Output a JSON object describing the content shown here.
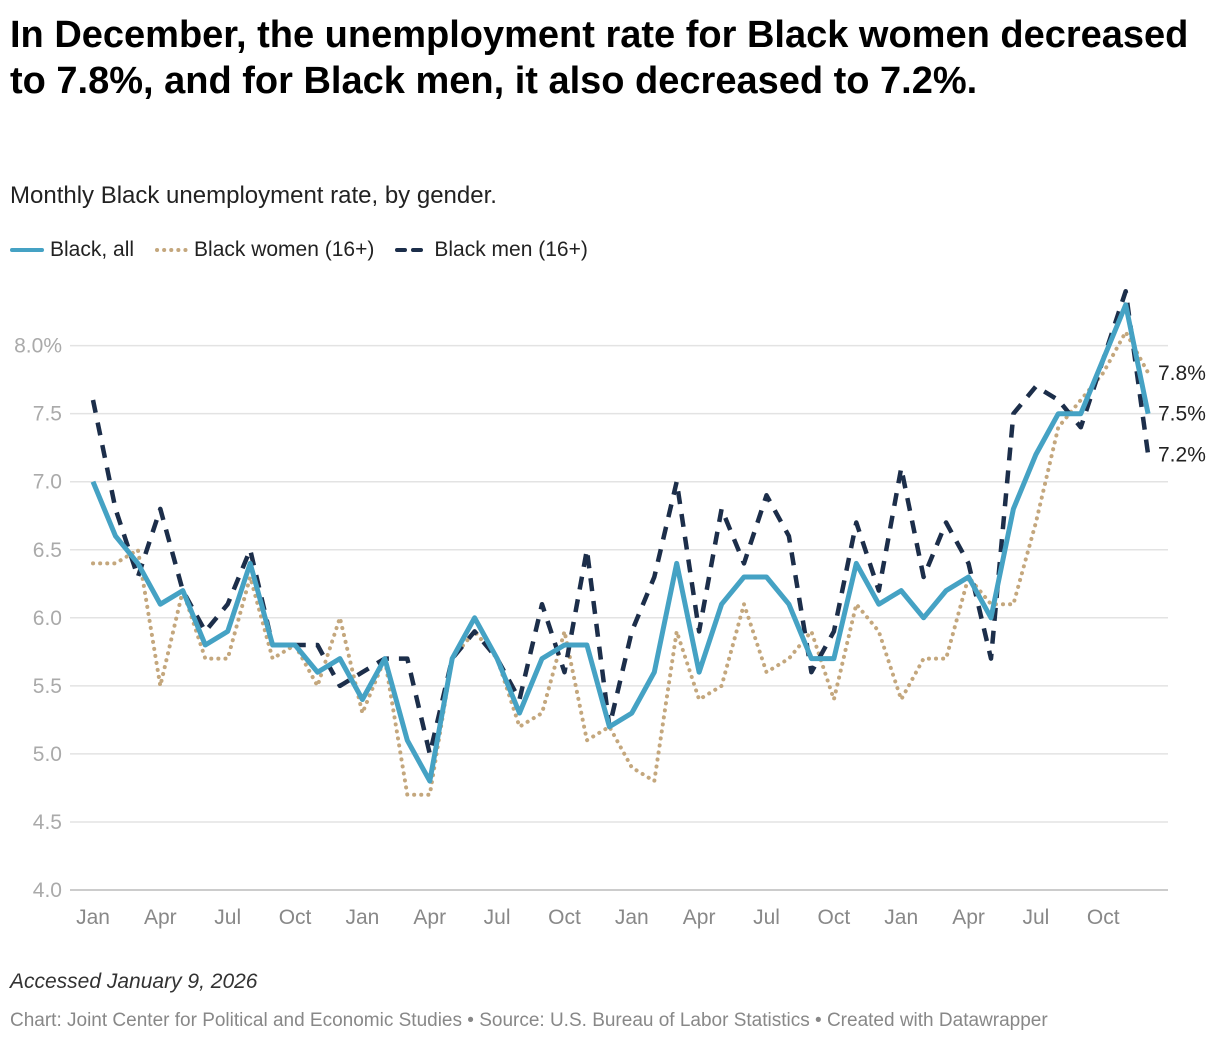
{
  "title": "In December, the unemployment rate for Black women decreased to 7.8%, and for Black men, it also decreased to 7.2%.",
  "subtitle": "Monthly Black unemployment rate, by gender.",
  "notes": "Accessed January 9, 2026",
  "footer": "Chart: Joint Center for Political and Economic Studies • Source: U.S. Bureau of Labor Statistics • Created with Datawrapper",
  "legend": [
    {
      "label": "Black, all",
      "color": "#45a2c4",
      "style": "solid"
    },
    {
      "label": "Black women (16+)",
      "color": "#c4a77d",
      "style": "dotted"
    },
    {
      "label": "Black men (16+)",
      "color": "#1c2e4a",
      "style": "dashed"
    }
  ],
  "chart_data": {
    "type": "line",
    "title": "In December, the unemployment rate for Black women decreased to 7.8%, and for Black men, it also decreased to 7.2%.",
    "subtitle": "Monthly Black unemployment rate, by gender.",
    "xlabel": "",
    "ylabel": "",
    "ylim": [
      4.0,
      8.4
    ],
    "yticks": [
      "4.0",
      "4.5",
      "5.0",
      "5.5",
      "6.0",
      "6.5",
      "7.0",
      "7.5",
      "8.0%"
    ],
    "ytick_values": [
      4.0,
      4.5,
      5.0,
      5.5,
      6.0,
      6.5,
      7.0,
      7.5,
      8.0
    ],
    "xticks": [
      {
        "index": 0,
        "label": "Jan"
      },
      {
        "index": 3,
        "label": "Apr"
      },
      {
        "index": 6,
        "label": "Jul"
      },
      {
        "index": 9,
        "label": "Oct"
      },
      {
        "index": 12,
        "label": "Jan"
      },
      {
        "index": 15,
        "label": "Apr"
      },
      {
        "index": 18,
        "label": "Jul"
      },
      {
        "index": 21,
        "label": "Oct"
      },
      {
        "index": 24,
        "label": "Jan"
      },
      {
        "index": 27,
        "label": "Apr"
      },
      {
        "index": 30,
        "label": "Jul"
      },
      {
        "index": 33,
        "label": "Oct"
      },
      {
        "index": 36,
        "label": "Jan"
      },
      {
        "index": 39,
        "label": "Apr"
      },
      {
        "index": 42,
        "label": "Jul"
      },
      {
        "index": 45,
        "label": "Oct"
      }
    ],
    "series": [
      {
        "name": "Black, all",
        "color": "#45a2c4",
        "style": "solid",
        "end_label": "7.5%",
        "values": [
          7.0,
          6.6,
          6.4,
          6.1,
          6.2,
          5.8,
          5.9,
          6.4,
          5.8,
          5.8,
          5.6,
          5.7,
          5.4,
          5.7,
          5.1,
          4.8,
          5.7,
          6.0,
          5.7,
          5.3,
          5.7,
          5.8,
          5.8,
          5.2,
          5.3,
          5.6,
          6.4,
          5.6,
          6.1,
          6.3,
          6.3,
          6.1,
          5.7,
          5.7,
          6.4,
          6.1,
          6.2,
          6.0,
          6.2,
          6.3,
          6.0,
          6.8,
          7.2,
          7.5,
          7.5,
          7.9,
          8.3,
          7.5
        ]
      },
      {
        "name": "Black women (16+)",
        "color": "#c4a77d",
        "style": "dotted",
        "end_label": "7.8%",
        "values": [
          6.4,
          6.4,
          6.5,
          5.5,
          6.2,
          5.7,
          5.7,
          6.3,
          5.7,
          5.8,
          5.5,
          6.0,
          5.3,
          5.7,
          4.7,
          4.7,
          5.7,
          5.9,
          5.7,
          5.2,
          5.3,
          5.9,
          5.1,
          5.2,
          4.9,
          4.8,
          5.9,
          5.4,
          5.5,
          6.1,
          5.6,
          5.7,
          5.9,
          5.4,
          6.1,
          5.9,
          5.4,
          5.7,
          5.7,
          6.3,
          6.1,
          6.1,
          6.7,
          7.4,
          7.6,
          7.8,
          8.1,
          7.8
        ]
      },
      {
        "name": "Black men (16+)",
        "color": "#1c2e4a",
        "style": "dashed",
        "end_label": "7.2%",
        "values": [
          7.6,
          6.8,
          6.3,
          6.8,
          6.2,
          5.9,
          6.1,
          6.5,
          5.8,
          5.8,
          5.8,
          5.5,
          5.6,
          5.7,
          5.7,
          5.0,
          5.7,
          5.9,
          5.7,
          5.4,
          6.1,
          5.6,
          6.5,
          5.2,
          5.9,
          6.3,
          7.0,
          5.9,
          6.8,
          6.4,
          6.9,
          6.6,
          5.6,
          5.9,
          6.7,
          6.2,
          7.1,
          6.3,
          6.7,
          6.4,
          5.7,
          7.5,
          7.7,
          7.6,
          7.4,
          7.9,
          8.4,
          7.2
        ]
      }
    ]
  }
}
